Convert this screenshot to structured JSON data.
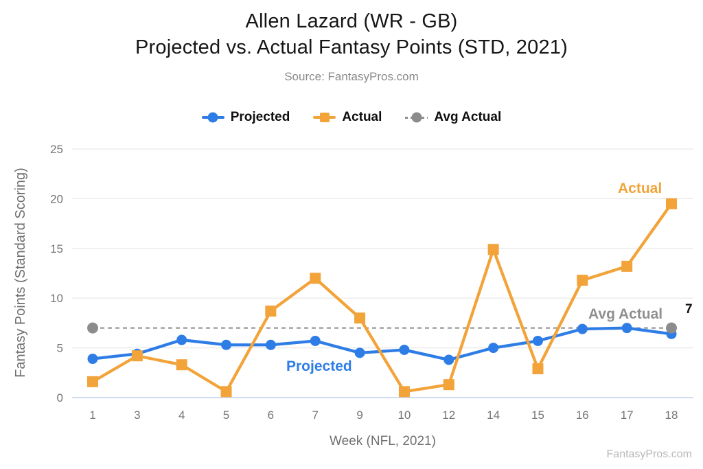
{
  "header": {
    "title_line1": "Allen Lazard (WR - GB)",
    "title_line2": "Projected vs. Actual Fantasy Points (STD, 2021)",
    "source": "Source: FantasyPros.com"
  },
  "legend": {
    "items": [
      {
        "label": "Projected",
        "marker": "circle-line",
        "color": "#2e7de6"
      },
      {
        "label": "Actual",
        "marker": "square-line",
        "color": "#f2a33a"
      },
      {
        "label": "Avg Actual",
        "marker": "circle-dashed-line",
        "color": "#8c8c8c"
      }
    ]
  },
  "chart_data": {
    "type": "line",
    "title": "Allen Lazard (WR - GB) Projected vs. Actual Fantasy Points (STD, 2021)",
    "xlabel": "Week (NFL, 2021)",
    "ylabel": "Fantasy Points (Standard Scoring)",
    "x": [
      1,
      3,
      4,
      5,
      6,
      7,
      9,
      10,
      12,
      14,
      15,
      16,
      17,
      18
    ],
    "ylim": [
      0,
      25
    ],
    "yticks": [
      0,
      5,
      10,
      15,
      20,
      25
    ],
    "grid": true,
    "grid_color": "#e7e7e7",
    "axis_line_color": "#c9d4ee",
    "tick_color": "#757575",
    "legend_position": "top-center",
    "series": [
      {
        "name": "Projected",
        "marker": "circle",
        "color": "#2e7de6",
        "values": [
          3.9,
          4.4,
          5.8,
          5.3,
          5.3,
          5.7,
          4.5,
          4.8,
          3.8,
          5.0,
          5.7,
          6.9,
          7.0,
          6.4
        ]
      },
      {
        "name": "Actual",
        "marker": "square",
        "color": "#f2a33a",
        "values": [
          1.6,
          4.2,
          3.3,
          0.6,
          8.7,
          12.0,
          8.0,
          0.6,
          1.3,
          14.9,
          2.9,
          11.8,
          13.2,
          19.5
        ]
      },
      {
        "name": "Avg Actual",
        "marker": "circle",
        "color": "#8c8c8c",
        "line_style": "dashed",
        "line_color": "#999999",
        "value": 7
      }
    ]
  },
  "annotations": {
    "projected_label": "Projected",
    "actual_label": "Actual",
    "avg_actual_label": "Avg Actual",
    "avg_value_label": "7"
  },
  "footer": {
    "brand": "FantasyPros.com"
  }
}
